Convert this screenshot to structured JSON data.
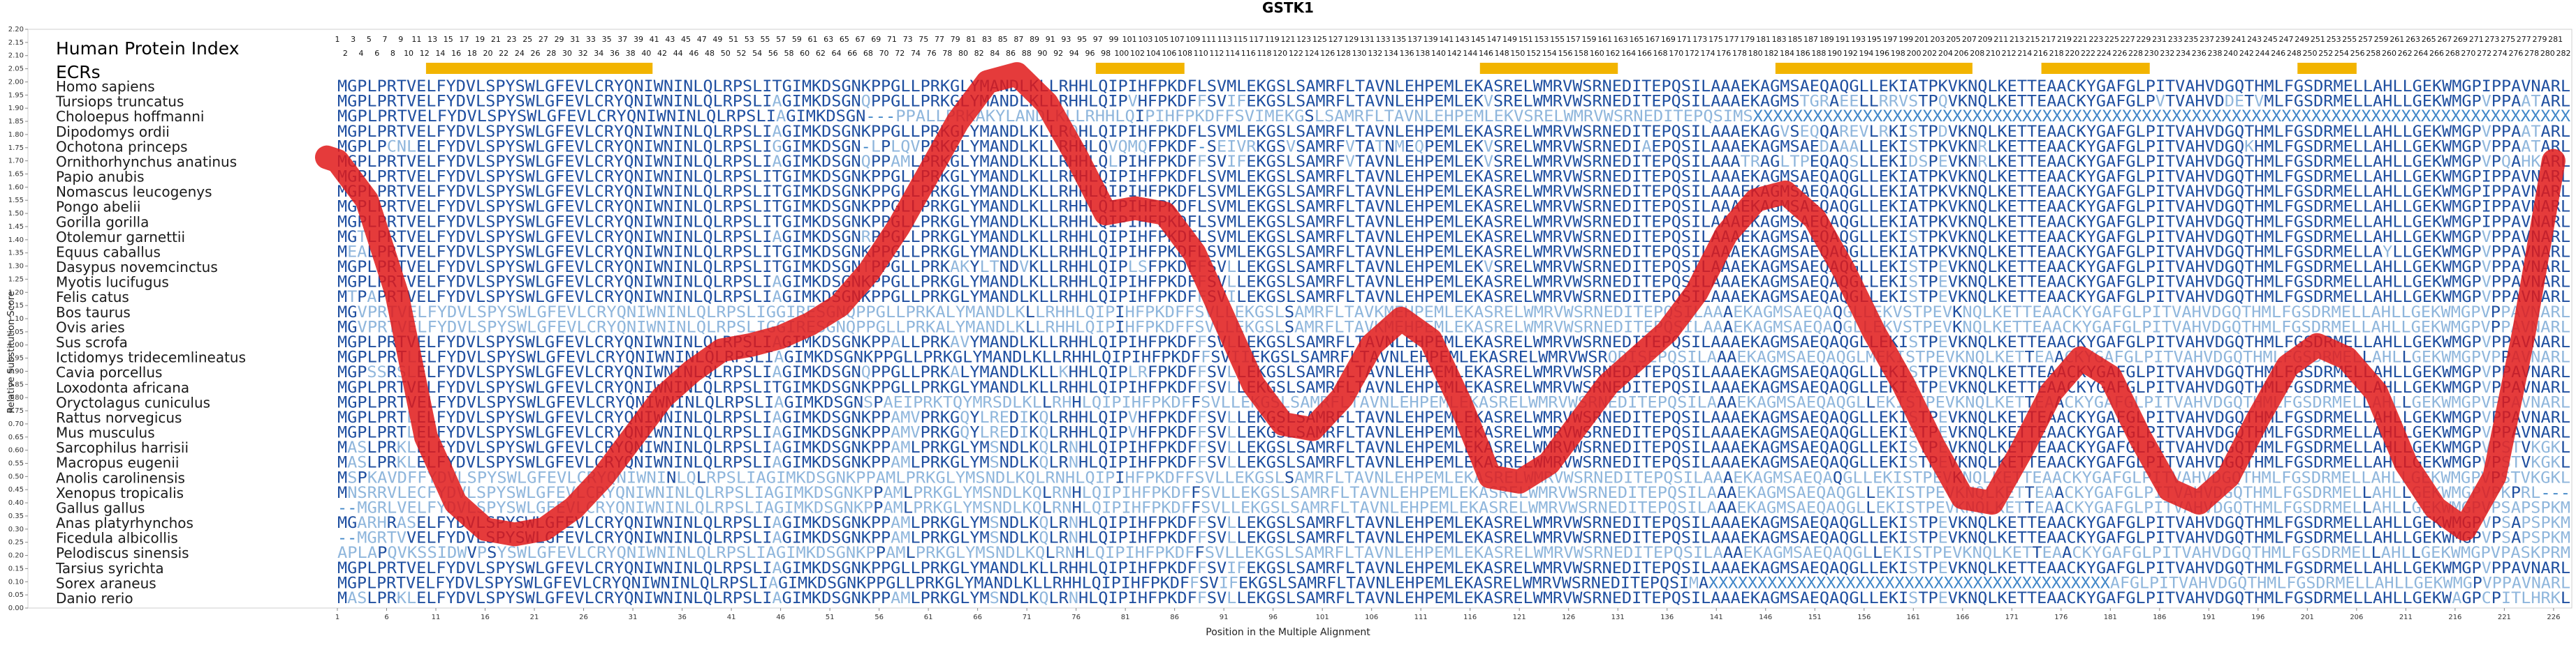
{
  "chart_data": {
    "type": "line",
    "title": "GSTK1",
    "xlabel": "Position in the Multiple Alignment",
    "ylabel": "Relative Substitution Score",
    "xlim": [
      1,
      227
    ],
    "ylim": [
      0,
      2.2
    ],
    "y_ticks": [
      "0.00",
      "0.05",
      "0.10",
      "0.15",
      "0.20",
      "0.25",
      "0.30",
      "0.35",
      "0.40",
      "0.45",
      "0.50",
      "0.55",
      "0.60",
      "0.65",
      "0.70",
      "0.75",
      "0.80",
      "0.85",
      "0.90",
      "0.95",
      "1.00",
      "1.05",
      "1.10",
      "1.15",
      "1.20",
      "1.25",
      "1.30",
      "1.35",
      "1.40",
      "1.45",
      "1.50",
      "1.55",
      "1.60",
      "1.65",
      "1.70",
      "1.75",
      "1.80",
      "1.85",
      "1.90",
      "1.95",
      "2.00",
      "2.05",
      "2.10",
      "2.15",
      "2.20"
    ],
    "x_ticks": [
      "1",
      "6",
      "11",
      "16",
      "21",
      "26",
      "31",
      "36",
      "41",
      "46",
      "51",
      "56",
      "61",
      "66",
      "71",
      "76",
      "81",
      "86",
      "91",
      "96",
      "101",
      "106",
      "111",
      "116",
      "121",
      "126",
      "131",
      "136",
      "141",
      "146",
      "151",
      "156",
      "161",
      "166",
      "171",
      "176",
      "181",
      "186",
      "191",
      "196",
      "201",
      "206",
      "211",
      "216",
      "221",
      "226"
    ],
    "header_labels": {
      "protein_index": "Human Protein Index",
      "ecrs": "ECRs"
    },
    "protein_index_top": [
      "1",
      "3",
      "5",
      "7",
      "9",
      "11",
      "13",
      "15",
      "17",
      "19",
      "21",
      "23",
      "25",
      "27",
      "29",
      "31",
      "33",
      "35",
      "37",
      "39",
      "41",
      "43",
      "45",
      "47",
      "49",
      "51",
      "53",
      "55",
      "57",
      "59",
      "61",
      "63",
      "65",
      "67",
      "69",
      "71",
      "73",
      "75",
      "77",
      "79",
      "81",
      "83",
      "85",
      "87",
      "89",
      "91",
      "93",
      "95",
      "97",
      "99",
      "101",
      "103",
      "105",
      "107",
      "109",
      "111",
      "113",
      "115",
      "117",
      "119",
      "121",
      "123",
      "125",
      "127",
      "129",
      "131",
      "133",
      "135",
      "137",
      "139",
      "141",
      "143",
      "145",
      "147",
      "149",
      "151",
      "153",
      "155",
      "157",
      "159",
      "161",
      "163",
      "165",
      "167",
      "169",
      "171",
      "173",
      "175",
      "177",
      "179",
      "181",
      "183",
      "185",
      "187",
      "189",
      "191",
      "193",
      "195",
      "197",
      "199",
      "201",
      "203",
      "205",
      "207",
      "209",
      "211",
      "213",
      "215",
      "217",
      "219",
      "221",
      "223",
      "225",
      "227",
      "229",
      "231",
      "233",
      "235",
      "237",
      "239",
      "241",
      "243",
      "245",
      "247",
      "249",
      "251",
      "253",
      "255",
      "257",
      "259",
      "261",
      "263",
      "265",
      "267",
      "269",
      "271",
      "273",
      "275",
      "277",
      "279",
      "281"
    ],
    "protein_index_bottom": [
      "2",
      "4",
      "6",
      "8",
      "10",
      "12",
      "14",
      "16",
      "18",
      "20",
      "22",
      "24",
      "26",
      "28",
      "30",
      "32",
      "34",
      "36",
      "38",
      "40",
      "42",
      "44",
      "46",
      "48",
      "50",
      "52",
      "54",
      "56",
      "58",
      "60",
      "62",
      "64",
      "66",
      "68",
      "70",
      "72",
      "74",
      "76",
      "78",
      "80",
      "82",
      "84",
      "86",
      "88",
      "90",
      "92",
      "94",
      "96",
      "98",
      "100",
      "102",
      "104",
      "106",
      "108",
      "110",
      "112",
      "114",
      "116",
      "118",
      "120",
      "122",
      "124",
      "126",
      "128",
      "130",
      "132",
      "134",
      "136",
      "138",
      "140",
      "142",
      "144",
      "146",
      "148",
      "150",
      "152",
      "154",
      "156",
      "158",
      "160",
      "162",
      "164",
      "166",
      "168",
      "170",
      "172",
      "174",
      "176",
      "178",
      "180",
      "182",
      "184",
      "186",
      "188",
      "190",
      "192",
      "194",
      "196",
      "198",
      "200",
      "202",
      "204",
      "206",
      "208",
      "210",
      "212",
      "214",
      "216",
      "218",
      "220",
      "222",
      "224",
      "226",
      "228",
      "230",
      "232",
      "234",
      "236",
      "238",
      "240",
      "242",
      "244",
      "246",
      "248",
      "250",
      "252",
      "254",
      "256",
      "258",
      "260",
      "262",
      "264",
      "266",
      "268",
      "270",
      "272",
      "274",
      "276",
      "278",
      "280",
      "282"
    ],
    "ecr_regions": [
      [
        10,
        33
      ],
      [
        78,
        87
      ],
      [
        117,
        131
      ],
      [
        147,
        167
      ],
      [
        174,
        185
      ],
      [
        200,
        206
      ]
    ],
    "ecr_color": "#f2b400",
    "line_color": "#e11919",
    "series": [
      {
        "x": [
          1,
          4,
          7,
          10,
          13,
          16,
          19,
          22,
          25,
          28,
          31,
          34,
          37,
          40,
          43,
          46,
          49,
          52,
          55,
          58,
          61,
          64,
          67,
          70,
          73,
          76,
          79,
          82,
          85,
          88,
          91,
          94,
          97,
          100,
          103,
          106,
          109,
          112,
          115,
          118,
          121,
          124,
          127,
          130,
          133,
          136,
          139,
          142,
          145,
          148,
          151,
          154,
          157,
          160,
          163,
          166,
          169,
          172,
          175,
          178,
          181,
          184,
          187,
          190,
          193,
          196,
          199,
          202,
          205,
          208,
          211,
          214,
          217,
          220,
          223,
          226
        ],
        "values": [
          1.7,
          1.55,
          1.2,
          0.65,
          0.4,
          0.3,
          0.28,
          0.3,
          0.38,
          0.5,
          0.65,
          0.8,
          0.9,
          0.98,
          1.0,
          1.03,
          1.08,
          1.15,
          1.28,
          1.45,
          1.65,
          1.85,
          2.0,
          2.03,
          1.92,
          1.72,
          1.5,
          1.52,
          1.5,
          1.35,
          1.1,
          0.85,
          0.7,
          0.68,
          0.8,
          1.0,
          1.1,
          1.02,
          0.78,
          0.5,
          0.48,
          0.55,
          0.7,
          0.85,
          0.95,
          1.05,
          1.2,
          1.42,
          1.55,
          1.58,
          1.48,
          1.28,
          1.05,
          0.85,
          0.62,
          0.42,
          0.4,
          0.6,
          0.82,
          0.95,
          0.88,
          0.65,
          0.45,
          0.4,
          0.5,
          0.72,
          0.92,
          1.0,
          0.95,
          0.82,
          0.55,
          0.38,
          0.3,
          0.5,
          1.05,
          1.7
        ]
      }
    ]
  },
  "species": [
    "Homo sapiens",
    "Tursiops truncatus",
    "Choloepus hoffmanni",
    "Dipodomys ordii",
    "Ochotona princeps",
    "Ornithorhynchus anatinus",
    "Papio anubis",
    "Nomascus leucogenys",
    "Pongo abelii",
    "Gorilla gorilla",
    "Otolemur garnettii",
    "Equus caballus",
    "Dasypus novemcinctus",
    "Myotis lucifugus",
    "Felis catus",
    "Bos taurus",
    "Ovis aries",
    "Sus scrofa",
    "Ictidomys tridecemlineatus",
    "Cavia porcellus",
    "Loxodonta africana",
    "Oryctolagus cuniculus",
    "Rattus norvegicus",
    "Mus musculus",
    "Sarcophilus harrisii",
    "Macropus eugenii",
    "Anolis carolinensis",
    "Xenopus tropicalis",
    "Gallus gallus",
    "Anas platyrhynchos",
    "Ficedula albicollis",
    "Pelodiscus sinensis",
    "Tarsius syrichta",
    "Sorex araneus",
    "Danio rerio"
  ],
  "alignment": [
    "MGPLPRTVELFYDVLSPYSWLGFEVLCRYQNIWNINLQLRPSLITGIMKDSGNKPPGLLPRKGLYMANDLKLLRHHLQIPIHFPKDFLSVMLEKGSLSAMRFLTAVNLEHPEMLEKASRELWMRVWSRNEDITEPQSILAAAEKAGMSAEQAQGLLEKIATPKVKNQLKETTEAACKYGAFGLPITVAHVDGQTHMLFGSDRMELLAHLLGEKWMGPIPPAVNARL",
    "MGPLPRTVELFYDVLSPYSWLGFEVLCRYQNIWNINLQLRPSLIAGIMKDSGNQPPGLLPRKGLYMANDLKLLRHHLQIPVHFPKDFFSVIFEKGSLSAMRFLTAVNLEHPEMLEKVSRELWMRVWSRNEDITEPQSILAAAEKAGMSTGRAEELLRRVSTPQVKNQLKETTEAACKYGAFGLPVTVAHVDDETVMLFGSDRMELLAHLLGEKWMGPVPPAATARL",
    "MGPLPRTVELFYDVLSPYSWLGFEVLCRYQNIWNINLQLRPSLIAGIMKDSGN---PPALLPRKAKYLANDLKLLRHHLQIPIHFPKDFFSVIMEKGSLSAMRFLTAVNLEHPEMLEKVSRELWMRVWSRNEDITEPQSIMSXXXXXXXXXXXXXXXXXXXXXXXXXXXXXXXXXXXXXXXXXXXXXXXXXXXXXXXXXXXXXXXXXXXXXXXXXXXXXXXXXX",
    "MGPLPRTVELFYDVLSPYSWLGFEVLCRYQNIWNINLQLRPSLIAGIMKDSGNKPPGLLPRKGLYMANDLKLLRQHLQIPIHFPKDFLSVMLEKGSLSAMRFLTAVNLEHPEMLEKASRELWMRVWSRNEDITEPQSILAAAEKAGVSEQQAREVLRKISTPDVKNQLKETTEAACKYGAFGLPITVAHVDGQTHMLFGSDRMELLAHLLGEKWMGPVPPAATARL",
    "MGPLPCNLELFYDVLSPYSWLGFEVLCRYQNIWNINLQLRPSLIGGIMKDSGN-LPLQVPRKGLYMANDLKLLRHHLQVQMQFPKDF-SEIVRKGSVSAMRFVTATNMEQPEMLEKVSRELWMRVWSRNEDIAEPQSILAAAEKAGMSAEDAAALLEKISTPKVKNRLKETTEAACKYGAFGLPITVAHVDGQKHMLFGSDRMELLAHLLGEKWMGPVPPAATARL",
    "MGPLPRTVELFYDVLSPYSWLGFEVLCRYQNIWNINLQLRPSLIAGIMKDSGNQPPAMLPRKGLYMANDLKLLRHHLQLPIHFPKDFFSVIFEKGSLSAMRFVTAVNLEHPEMLEKVSRELWMRVWSRNEDITEPQSILAAATRAGLTPEQAQSLLEKIDSPEVKNRLKETTEAACKYGAFGLPITVAHVDGQTHMLFGSDRMELLAHLLGEKWMGPVPQAHKARL",
    "MGPLPRTVELFYDVLSPYSWLGFEVLCRYQNIWNINLQLRPSLITGIMKDSGNKPPGLLPRKGLYMANDLKLLRHHLQIPIHFPKDFLSVMLEKGSLSAMRFLTAVNLEHPEMLEKASRELWMRVWSRNEDITEPQSILAAAEKAGMSAEQAQGLLEKIATPKVKNQLKETTEAACKYGAFGLPITVAHVDGQTHMLFGSDRMELLAHLLGEKWMGPIPPAVNARL",
    "MGPLPRTVELFYDVLSPYSWLGFEVLCRYQNIWNINLQLRPSLITGIMKDSGNKPPGLLPRKGLYMANDLKLLRHHLQIPIHFPKDFLSVMLEKGSLSAMRFLTAVNLEHPEMLEKASRELWMRVWSRNEDITEPQSILAAAEKAGMSAEQAQGLLEKIATPKVKNQLKETTEAACKYGAFGLPITVAHVDGQTHMLFGSDRMELLAHLLGEKWMGPIPPAVNARL",
    "MGPLPRTVELFYDVLSPYSWLGFEVLCRYQNIWNINLQLRPSLITGIMKDSGNKPPGLLPRKGLYMANDLKLLRHHLQIPIHFPKDFLSVMLEKGSLSAMRFLTAVNLEHPEMLEKASRELWMRVWSRNEDITEPQSILAAAEKAGMSAEQAQGLLEKIATPKVKNQLKETTEAACKYGAFGLPITVAHVDGQTHMLFGSDRMELLAHLLGEKWMGPIPPAVNARL",
    "MGPLPRTVELFYDVLSPYSWLGFEVLCRYQNIWNINLQLRPSLITGIMKDSGNKPPGLLPRKGLYMANDLKLLRHHLQIPIHFPKDFLSVMLEKGSLSAMRFLTAVNLEHPEMLEKASRELWMRVWSRNEDITEPQSILAAAEKAGMSAEQAQGLLEKIATPKVKNQLKETTEAACKYGAFGLPITVAHVDGQTHMLFGSDRMELLAHLLGEKWMGPIPPAVNARL",
    "MGTLPRTVELFYDVLSPYSWLGFEVLCRYQNIWNINLQLRPSLIAGIMKDSGNRPPGLLPRKGLYMANDLKLLRHHLQIPIHFPKDFLSVMLEKGSLSAMRFLTAVNLEHPEMLEKASRELWMRVWSRNEDITEPQSILAAAEKAGMSAEQAQGLLEKISTPKVKNQLKETTEAACKYGAFGLPITVAHVDGQTHMLFGSDRMELLAHLLGEKWMGPVPPAVNARL",
    "MEALPRTVELFYDVLSPYSWLGFEVLCRYQNIWNINLQLRPSLITGIMKDSGNKPPGLLPRKGLYMANDLKLLRHHLQIPIHFPKDFLSVMLEKGSLSAMRFLTAVNLEHPEMLEKASRELWMRVWSRNEDITEPQSILAAAEKAGMSAEQAQGLLEKIATPKVKNQLKETTEAACKYGAFGLPITVAHVDGQTHMLFGSDRMELLAYLLGEKWMGPVPPAVNARL",
    "MGPLPRTVELFYDVLSPYSWLGFEVLCRYQNIWNINLQLRPSLITGIMKDSGNTPPGLLPRKAKYLTNDVKLLRHHLQIPLSFPKDFFSVLLEKGSLSAMRFLTAVNLEHPEMLEKVSRELWMRVWSRNEDITEPQSILAAAEKAGMSAEQAQGLLEKISTPEVKNQLKETTEAACKYGAFGLPITVAHVDGQTHMLFGSDRMELLAHLLGEKWMGPVPPAVNARL",
    "MGPLPRTVELFYDVLSPYSWLGFEVLCRYQNIWNINLQLRPSLIAGIMKDSGNKPPGLLPRKGLYMANDLKLLRHHLQIPIHFPKDFFSVLLEKGSLSAMRFLTAVNLEHPEMLEKASRELWMRVWSRNEDITEPQSILAAAEKAGMSAEQAQGLLEKISTPEVKNQLKETTEAACKYGAFGLPITVAHVDGQTHMLFGSDRMELLAHLLGEKWMGPVPPAVNARL",
    "MTPAPRTVELFYDVLSPYSWLGFEVLCRYQNIWNINLQLRPSLIAGIMKDSGNKPPGLLPRKGLYMANDLKLLRHHLQIPIHFPKDFFSVILEKGSLSAMRFLTAVNLEHPEMLEKASRELWMRVWSRNEDITEPQSILAAAEKAGMSAEQAQGLLEKISTPEVKNQLKETTEAACKYGAFGLPITVAHVDGQTHMLFGSDRMELLAHLLGEKWMGPVPPAVNARL",
    "MGVPRTVELFYDVLSPYSWLGFEVLCRYQNIWNINLQLRPSLIGGIRESGNQPPGLLPRKALYMANDLKLLRHHLQIPIHFPKDFFSVLLEKGSLSAMRFLTAVKMEHPEMLEKASRELWMRVWSRNEDITEPQSILAAAEKAGMSAEQAQGLLEKVSTPEVKNQLKETTEAACKYGAFGLPITVAHVDGQTHMLFGSDRMELLAHLLGEKWMGPVPPAVNARL",
    "MGVPRTVELFYDVLSPYSWLGFEVLCRYQNIWNINLQLRPSLIGGIRESGNQPPGLLPRKALYMANDLKLLRHHLQIPIHFPKDFFSVLLEKGSLSAMRFLTAVKMEHPEMLEKASRELWMRVWSRNEDITEPQSILAAAEKAGMSAEQAQGLLEKVSTPEVKNQLKETTEAACKYGAFGLPITVAHVDGQTHMLFGSDRMELLAHLLGEKWMGPVPPAVNARL",
    "MGPLPRTVELFYDVLSPYSWLGFEVLCRYQNIWNINLQLRPSLIAGIMKDSGNKPPALLPRKAVYMANDLKLLRHHLQIPIHFPKDFFSVLLEKGSLSAMRFLTAVNLEHPEMLEKASRELWMRVWSRNEDITEPQSILAAAEKAGMSAEQAQGLLEKISTPEVKNQLKETTEAACKYGAFGLPITVAHVDGQTHMLFGSDRMELLAHLLGEKWMGPVPPAVNARL",
    "MGPLPRTLELFYDVLSPYSWLGFEVLCRYQNIWNINLQLRPSLIAGIMKDSGNKPPGLLPRKGLYMANDLKLLRHHLQIPIHFPKDFFSVIIEKGSLSAMRFLTAVNLEHPEMLEKASRELWMRVWSRQDISEPQSILAAAEKAGMSAEQAQGLMEKISTPEVKNQLKETTEAACKYGAFGLPITVAHVDGQTHMLFGSDRMELLAHLLGEKWMGPVPPAVNARL",
    "MGPSSRSLELFYDVLSPYSWLGFEVLCRYQNIWNINLQLRPSLIAGIMKDSGNQPPGLLPRKALYMANDLKLLKHHLQIPLRFPKDFFSVLLEKGSLSAMRFLTAVNLEHPEMLEKASRELWMRVWSRNEDITEPQSILAAAEKAGMSAEQAQGLLEKISTPEVKNQLKETTEAACKYGAFGLPITVAHVDGQTHMLFGSDRMELLAHLLGEKWMGPVPPAVNARL",
    "MGPLPRTVELFYDVLSPYSWLGFEVLCRYQNIWNINLQLRPSLITGIMKDSGNKPPGLLPRKGLYMANDLKLLRHHLQIPIHFPKDFFSVLLEKGSLSAMRFLTAVNLEHPEMLEKASRELWMRVWSRNEDITEPQSILAAAEKAGMSAEQAQGLLEKISTPEVKNQLKETTEAACKYGAFGLPITVAHVDGQTHMLFGSDRMELLAHLLGEKWMGPVPPAVNARL",
    "MGPLPRTVELFYDVLSPYSWLGFEVLCRYQNIWNINLQLRPSLIAGIMKDSGNSPAEIPRKTQYMRSDLKLLRHHLQIPIHFPKDFFSVLLEKGSLSAMRFLTAVNLEHPEMLEKASRELWMRVWSRNEDITEPQSILAAAEKAGMSAEQAQGLLEKISTPEVKNQLKETTEAACKYGAFGLPITVAHVDGQTHMLFGSDRMELLAHLLGEKWMGPVPPAVNARL",
    "MGPLPRTLELFYDVLSPYSWLGFEVLCRYQNIWNINLQLRPSLIAGIMKDSGNKPPAMVPRKGQYLREDIKQLRHHLQIPVHFPKDFFSVLLEKGSLSAMRFLTAVNLEHPEMLEKASRELWMRVWSRNEDITEPQSILAAAEKAGMSAEQAQGLLEKISTPEVKNQLKETTEAACKYGAFGLPITVAHVDGQTHMLFGSDRMELLAHLLGEKWMGPVPPAVNARL",
    "MGPLPRTLELFYDVLSPYSWLGFEVLCRYQNIWNINLQLRPSLIAGIMKDSGNKPPAMVPRKGQYLREDIKQLRHHLQIPVHFPKDFFSVLLEKGSLSAMRFLTAVNLEHPEMLEKASRELWMRVWSRNEDITEPQSILAAAEKAGMSAEQAQGLLEKISTPEVKNQLKETTEAACKYGAFGLPITVAHVDGQTHMLFGSDRMELLAHLLGEKWMGPVPPAVNARL",
    "MASLPRKLELFYDVLSPYSWLGFEVLCRYQNIWNINLQLRPSLIAGIMKDSGNKPPAMLPRKGLYMSNDLKQLRNHLQIPIHFPKDFFSVLLEKGSLSAMRFLTAVNLEHPEMLEKASRELWMRVWSRNEDITEPQSILAAAEKAGMSAEQAQGLLEKISTPEVKNQLKETTEAACKYGAFGLPITVAHVDGQTHMLFGSDRMELLAHLLGEKWMGPVPSTVKGKL",
    "MASLPRKLELFYDVLSPYSWLGFEVLCRYQNIWNINLQLRPSLIAGIMKDSGNKPPAMLPRKGLYMSNDLKQLRNHLQIPIHFPKDFFSVLLEKGSLSAMRFLTAVNLEHPEMLEKASRELWMRVWSRNEDITEPQSILAAAEKAGMSAEQAQGLLEKISTPEVKNQLKETTEAACKYGAFGLPITVAHVDGQTHMLFGSDRMELLAHLLGEKWMGPVPSTVKGKL",
    "MSPKAVDFFYDVLSPYSWLGFEVLCRYQNIWNINLQLRPSLIAGIMKDSGNKPPAMLPRKGLYMSNDLKQLRNHLQIPIHFPKDFFSVLLEKGSLSAMRFLTAVNLEHPEMLEKASRELWMRVWSRNEDITEPQSILAAAEKAGMSAEQAQGLLEKISTPEVKNQLKETTEAACKYGAFGLPITVAHVDGQTHMLFGSDRMELLAHLLGEKWMGPVPSTVKGKL",
    "MNSRRVLECFYDVLSPYSWLGFEVLCRYQNIWNINLQLRPSLIAGIMKDSGNKPPAMLPRKGLYMSNDLKQLRNHLQIPIHFPKDFFSVLLEKGSLSAMRFLTAVNLEHPEMLEKASRELWMRVWSRNEDITEPQSILAAAEKAGMSAEQAQGLLEKISTPEVKNQLKETTEAACKYGAFGLPITVAHVDGQTHMLFGSDRMELLAHLLGEKWMGPVPKPRL---",
    "--MGRLVELFYDVLSPYSWLGFEVLCRYQNIWNINLQLRPSLIAGIMKDSGNKPPAMLPRKGLYMSNDLKQLRNHLQIPIHFPKDFFSVLLEKGSLSAMRFLTAVNLEHPEMLEKASRELWMRVWSRNEDITEPQSILAAAEKAGMSAEQAQGLLEKISTPEVKNQLKETTEAACKYGAFGLPITVAHVDGQTHMLFGSDRMELLAHLLGEKWMGPVPSAPSPKM",
    "MGARHRASELFYDVLSPYSWLGFEVLCRYQNIWNINLQLRPSLIAGIMKDSGNKPPAMLPRKGLYMSNDLKQLRNHLQIPIHFPKDFFSVLLEKGSLSAMRFLTAVNLEHPEMLEKASRELWMRVWSRNEDITEPQSILAAAEKAGMSAEQAQGLLEKISTPEVKNQLKETTEAACKYGAFGLPITVAHVDGQTHMLFGSDRMELLAHLLGEKWMGPVPSAPSPKM",
    "--MGRTVVELFYDVLSPYSWLGFEVLCRYQNIWNINLQLRPSLIAGIMKDSGNKPPAMLPRKGLYMSNDLKQLRNHLQIPIHFPKDFFSVLLEKGSLSAMRFLTAVNLEHPEMLEKASRELWMRVWSRNEDITEPQSILAAAEKAGMSAEQAQGLLEKISTPEVKNQLKETTEAACKYGAFGLPITVAHVDGQTHMLFGSDRMELLAHLLGEKWMGPVPSAPSPKM",
    "APLAPQVKSSIDWVPSYSWLGFEVLCRYQNIWNINLQLRPSLIAGIMKDSGNKPPAMLPRKGLYMSNDLKQLRNHLQIPIHFPKDFFSVLLEKGSLSAMRFLTAVNLEHPEMLEKASRELWMRVWSRNEDITEPQSILAAAEKAGMSAEQAQGLLEKISTPEVKNQLKETTEAACKYGAFGLPITVAHVDGQTHMLFGSDRMELLAHLLGEKWMGPVPASKPRM",
    "MGPLPRTVELFYDVLSPYSWLGFEVLCRYQNIWNINLQLRPSLIAGIMKDSGNKPPGLLPRKGLYMANDLKLLRHHLQIPIHFPKDFFSVIFEKGSLSAMRFLTAVNLEHPEMLEKASRELWMRVWSRNEDITEPQSILAAAEKAGMSAEQAQGLLEKISTPEVKNQLKETTEAACKYGAFGLPITVAHVDGQTHMLFGSDRMELLAHLLGEKWMGPVPPAVNARL",
    "MGPLPRTVELFYDVLSPYSWLGFEVLCRYQNIWNINLQLRPSLIAGIMKDSGNKPPGLLPRKGLYMANDLKLLRHHLQIPIHFPKDFFSVIFEKGSLSAMRFLTAVNLEHPEMLEKASRELWMRVWSRNEDITEPQSIMAXXXXXXXXXXXXXXXXXXXXXXXXXXXXXXXXXXXXXXXXXAFGLPITVAHVDGQTHMLFGSDRMELLAHLLGEKWMGPVPPAVNARL",
    "MASLPRKLELFYDVLSPYSWLGFEVLCRYQNIWNINLQLRPSLIAGIMKDSGNKPPAMLPRKGLYMSNDLKQLRNHLQIPIHFPKDFFSVLLEKGSLSAMRFLTAVNLEHPEMLEKASRELWMRVWSRNEDITEPQSILAAAEKAGMSAEQAQGLLEKISTPEVKNQLKETTEAACKYGAFGLPITVAHVDGQTHMLFGSDRMELLAHLLGEKWAGPCPITLHRKL"
  ],
  "colors": {
    "seq_conserved": "#1f4fa0",
    "seq_moderate": "#3f86c8",
    "seq_variable": "#8fb6dc"
  }
}
